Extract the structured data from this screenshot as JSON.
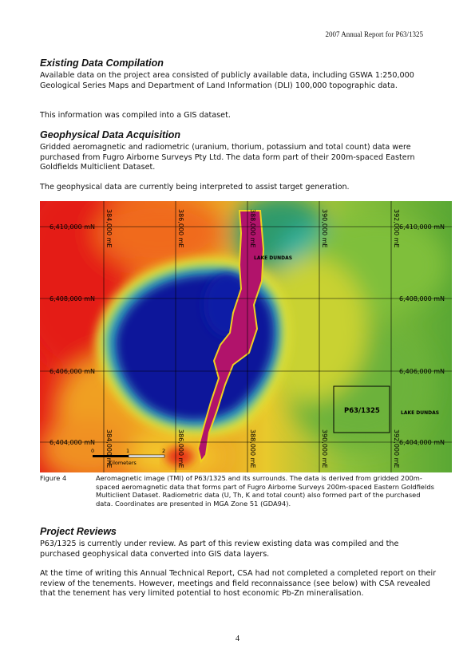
{
  "header": "2007 Annual Report for P63/1325",
  "section1": {
    "title": "Existing Data Compilation",
    "para1": "Available data on the project area consisted of publicly available data, including GSWA 1:250,000 Geological Series Maps and Department of Land Information (DLI) 100,000 topographic data.",
    "para2": "This information was compiled into a GIS dataset."
  },
  "section2": {
    "title": "Geophysical Data Acquisition",
    "para1": "Gridded aeromagnetic and radiometric (uranium, thorium, potassium and total count) data were purchased from Fugro Airborne Surveys Pty Ltd. The data form part of their 200m-spaced Eastern Goldfields Multiclient Dataset.",
    "para2": "The geophysical data are currently being interpreted to assist target generation."
  },
  "figure": {
    "northings_left": [
      "6,410,000 mN",
      "6,408,000 mN",
      "6,406,000 mN",
      "6,404,000 mN"
    ],
    "northings_right": [
      "6,410,000 mN",
      "6,408,000 mN",
      "6,406,000 mN",
      "6,404,000 mN"
    ],
    "eastings": [
      "384,000 mE",
      "386,000 mE",
      "388,000 mE",
      "390,000 mE",
      "392,000 mE"
    ],
    "lake_label_1": "LAKE DUNDAS",
    "lake_label_2": "LAKE DUNDAS",
    "tenement_label": "P63/1325",
    "scale_ticks": [
      "0",
      "1",
      "2"
    ],
    "scale_unit": "Kilometers",
    "colors": {
      "red": "#e8231a",
      "orange": "#f08a1c",
      "yellow": "#e8e030",
      "green": "#5ca83a",
      "blue": "#1c2fb8",
      "navy": "#05108f",
      "magenta": "#b0126a"
    },
    "caption_number": "Figure 4",
    "caption_text": "Aeromagnetic image (TMI) of P63/1325 and its surrounds. The data is derived from gridded 200m-spaced aeromagnetic data that forms part of Fugro Airborne Surveys 200m-spaced  Eastern Goldfields Multiclient Dataset. Radiometric data (U, Th, K and total count) also formed part of the purchased data. Coordinates are presented in MGA Zone 51 (GDA94)."
  },
  "section3": {
    "title": "Project Reviews",
    "para1": "P63/1325 is currently under review. As part of this review existing data was compiled and the purchased geophysical data converted into GIS data layers.",
    "para2": "At the time of writing this Annual Technical Report, CSA had not completed a completed report on their review of the tenements. However, meetings and field reconnaissance (see below) with CSA revealed that the tenement has very limited potential to host economic Pb-Zn mineralisation."
  },
  "page_number": "4"
}
